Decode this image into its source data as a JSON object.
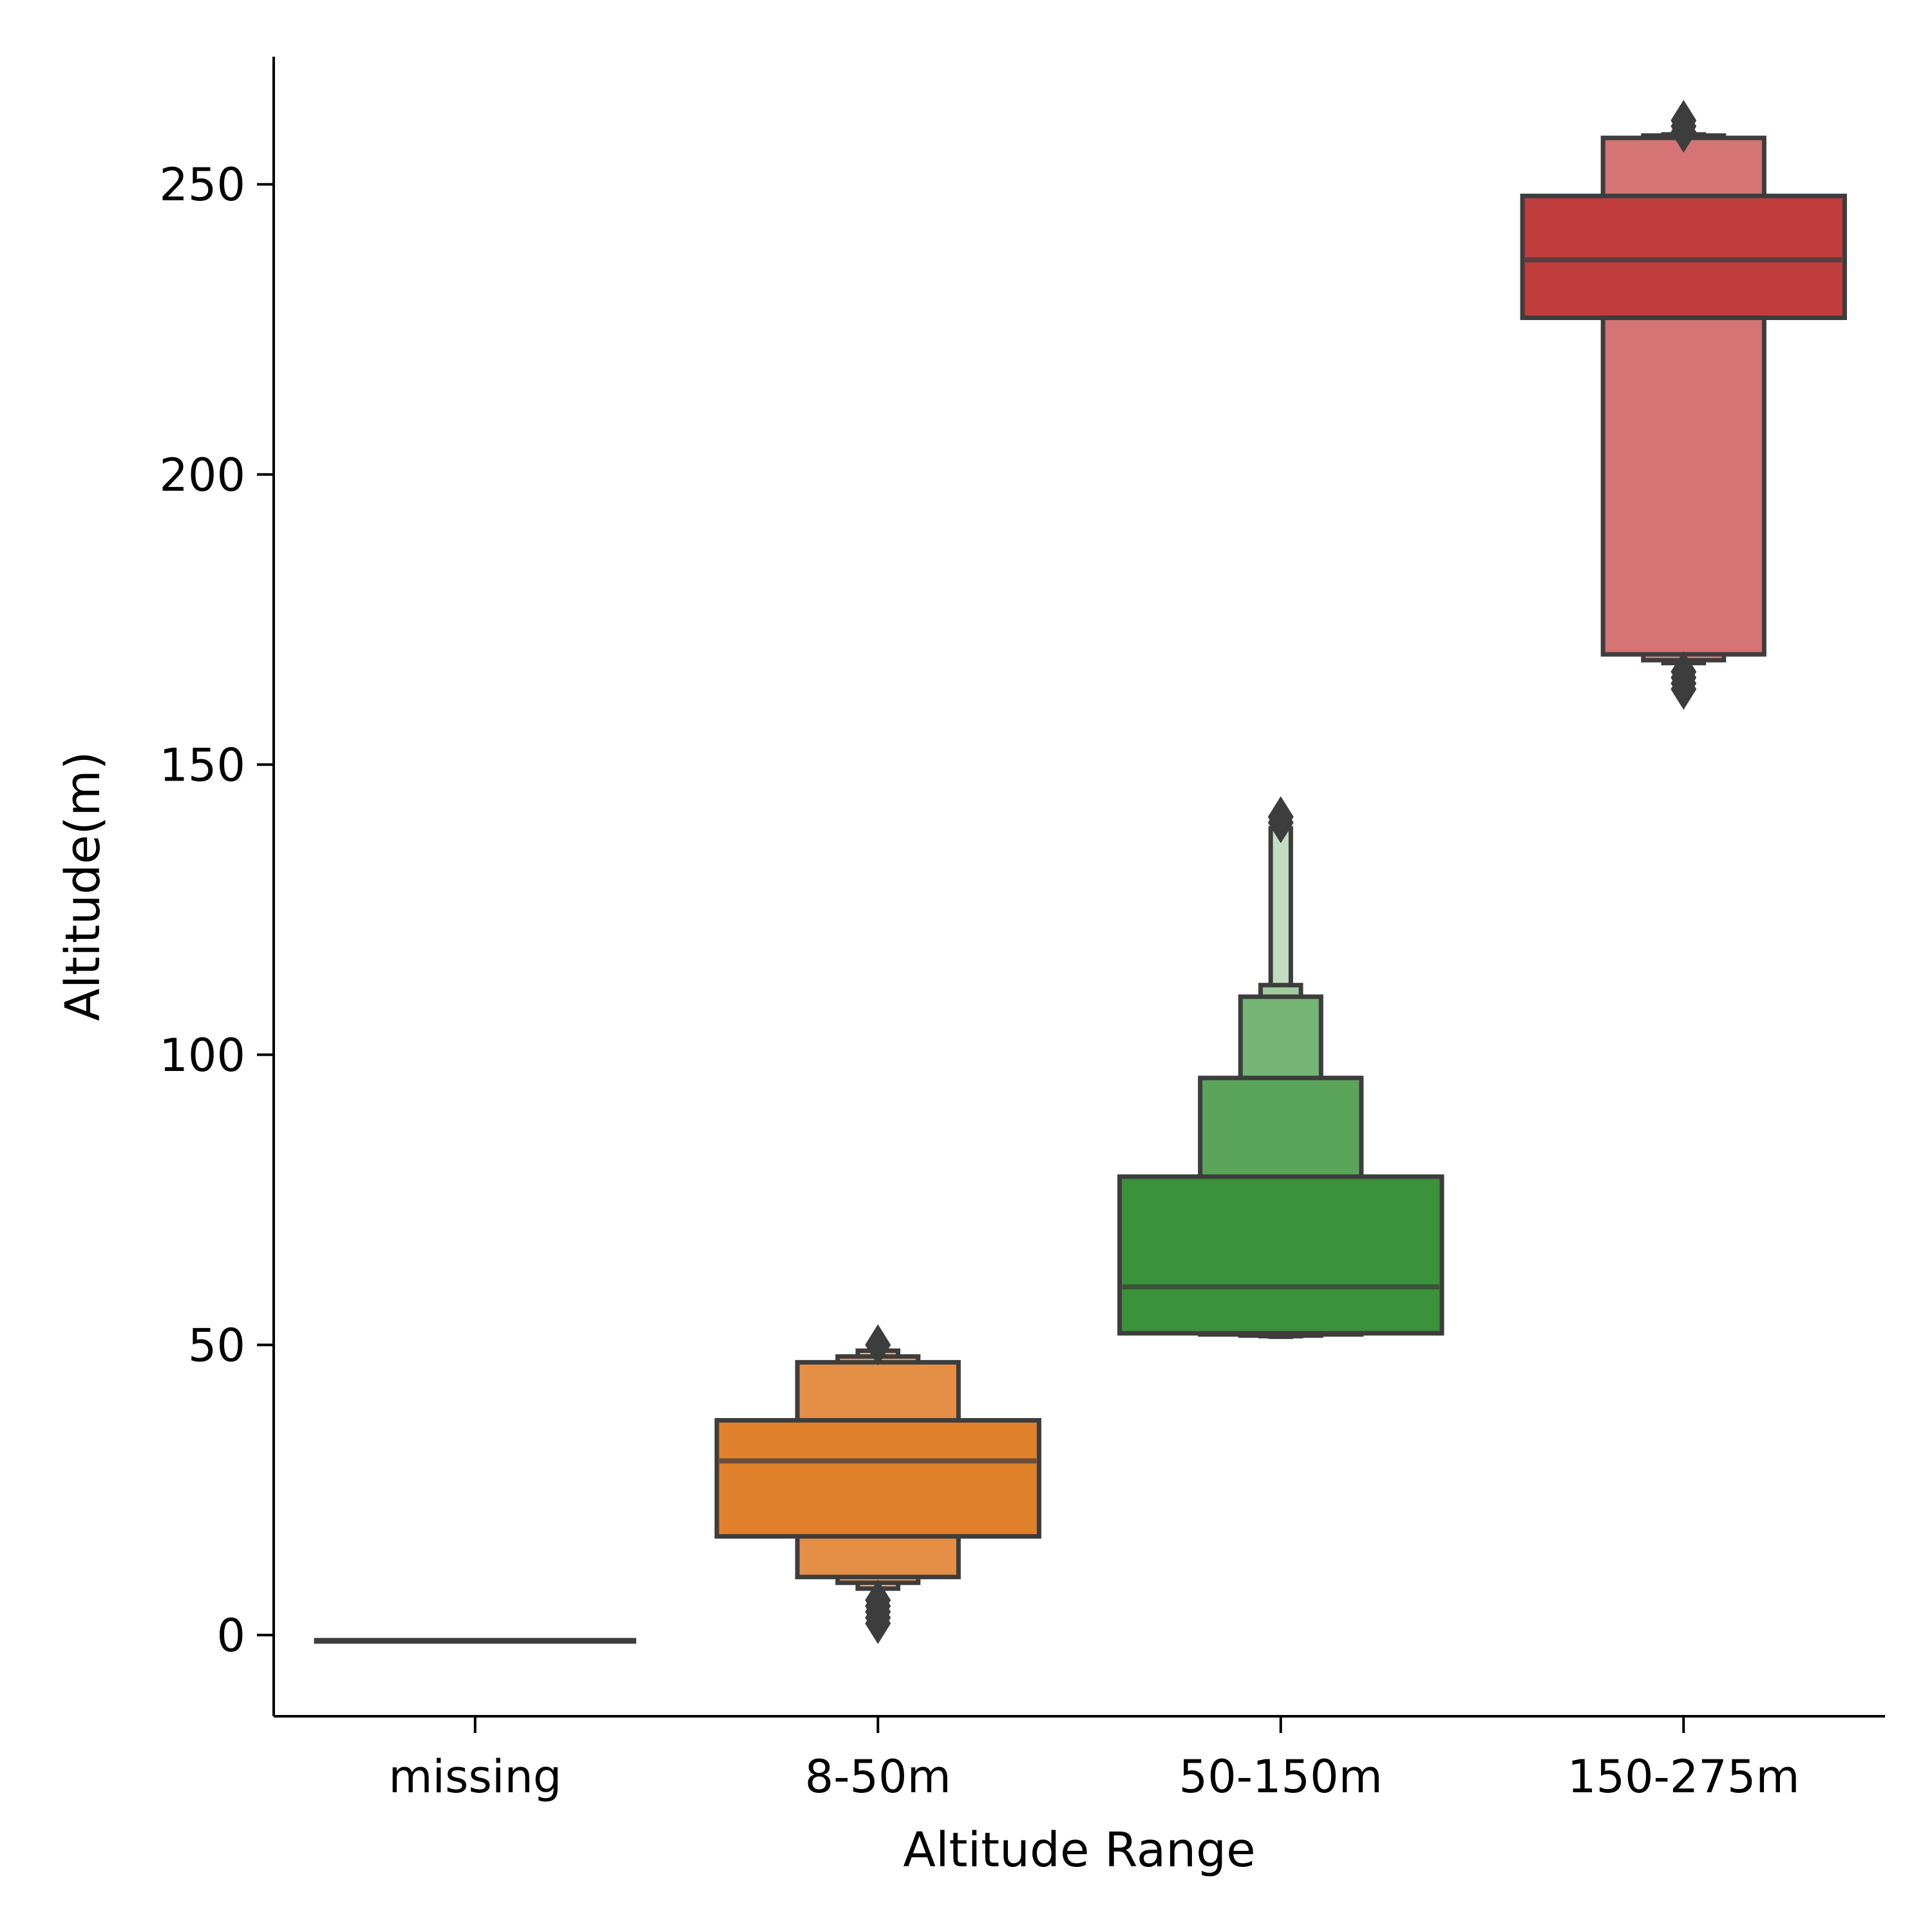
{
  "chart_data": {
    "type": "boxen",
    "xlabel": "Altitude Range",
    "ylabel": "Altitude(m)",
    "ylim": [
      -14,
      272
    ],
    "yticks": [
      0,
      50,
      100,
      150,
      200,
      250
    ],
    "categories": [
      "missing",
      "8-50m",
      "50-150m",
      "150-275m"
    ],
    "grid": false,
    "legend": "none",
    "edge_color": "#3d3d3d",
    "groups": [
      {
        "category": "missing",
        "color": "#3d3d3d",
        "median": -1,
        "letter_values": [
          {
            "low": -1,
            "high": -1,
            "width_frac": 0.8,
            "color": "#3d3d3d"
          }
        ],
        "outliers": []
      },
      {
        "category": "8-50m",
        "color": "#e1812c",
        "median": 30,
        "letter_values": [
          {
            "low": 17,
            "high": 37,
            "width_frac": 0.8,
            "color": "#e1812c"
          },
          {
            "low": 10,
            "high": 47,
            "width_frac": 0.4,
            "color": "#e58e45"
          },
          {
            "low": 9,
            "high": 48,
            "width_frac": 0.2,
            "color": "#e8a268"
          },
          {
            "low": 8,
            "high": 49,
            "width_frac": 0.1,
            "color": "#edba8f"
          }
        ],
        "outliers": [
          2,
          3,
          4,
          5,
          6,
          50
        ]
      },
      {
        "category": "50-150m",
        "color": "#3a923a",
        "median": 60,
        "letter_values": [
          {
            "low": 52,
            "high": 79,
            "width_frac": 0.8,
            "color": "#3a923a"
          },
          {
            "low": 51.8,
            "high": 96,
            "width_frac": 0.4,
            "color": "#5aa55a"
          },
          {
            "low": 51.6,
            "high": 110,
            "width_frac": 0.2,
            "color": "#75b575"
          },
          {
            "low": 51.5,
            "high": 112,
            "width_frac": 0.1,
            "color": "#9fcb9f"
          },
          {
            "low": 51.4,
            "high": 139,
            "width_frac": 0.05,
            "color": "#c2ddc2"
          }
        ],
        "outliers": [
          140,
          141
        ]
      },
      {
        "category": "150-275m",
        "color": "#c03d3e",
        "median": 237,
        "letter_values": [
          {
            "low": 227,
            "high": 248,
            "width_frac": 0.8,
            "color": "#c03d3e"
          },
          {
            "low": 169,
            "high": 258,
            "width_frac": 0.4,
            "color": "#d47475"
          },
          {
            "low": 168,
            "high": 258.4,
            "width_frac": 0.2,
            "color": "#dd9596"
          },
          {
            "low": 167.5,
            "high": 258.6,
            "width_frac": 0.1,
            "color": "#e6b3b3"
          }
        ],
        "outliers": [
          163,
          164,
          165,
          166,
          259,
          260,
          261
        ]
      }
    ]
  }
}
